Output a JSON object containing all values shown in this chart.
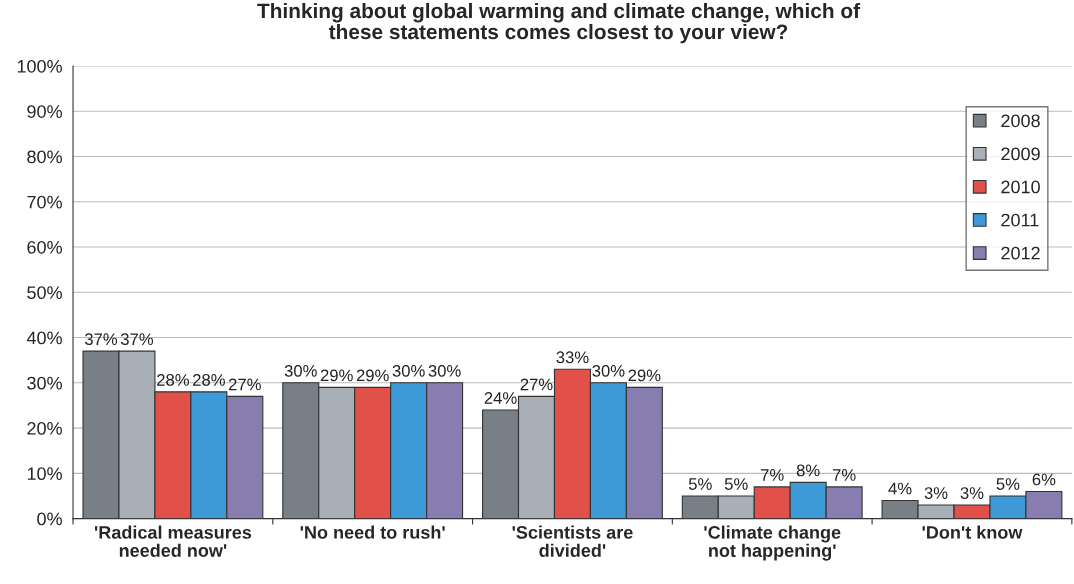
{
  "chart_data": {
    "type": "bar",
    "title": "Thinking about global warming and climate change, which of these statements comes closest to your view?",
    "categories": [
      "'Radical measures needed now'",
      "'No need to rush'",
      "'Scientists are divided'",
      "'Climate change not happening'",
      "'Don't know"
    ],
    "series": [
      {
        "name": "2008",
        "color": "#787f86",
        "values": [
          37,
          30,
          24,
          5,
          4
        ],
        "value_labels": [
          "37%",
          "30%",
          "24%",
          "5%",
          "4%"
        ]
      },
      {
        "name": "2009",
        "color": "#a9afb6",
        "values": [
          37,
          29,
          27,
          5,
          3
        ],
        "value_labels": [
          "37%",
          "29%",
          "27%",
          "5%",
          "3%"
        ]
      },
      {
        "name": "2010",
        "color": "#e2504a",
        "values": [
          28,
          29,
          33,
          7,
          3
        ],
        "value_labels": [
          "28%",
          "29%",
          "33%",
          "7%",
          "3%"
        ]
      },
      {
        "name": "2011",
        "color": "#3d9ad6",
        "values": [
          28,
          30,
          30,
          8,
          5
        ],
        "value_labels": [
          "28%",
          "30%",
          "30%",
          "8%",
          "5%"
        ]
      },
      {
        "name": "2012",
        "color": "#877daf",
        "values": [
          27,
          30,
          29,
          7,
          6
        ],
        "value_labels": [
          "27%",
          "30%",
          "29%",
          "7%",
          "6%"
        ]
      }
    ],
    "ylim": [
      0,
      100
    ],
    "yticks": [
      {
        "value": 0,
        "label": "0%"
      },
      {
        "value": 10,
        "label": "10%"
      },
      {
        "value": 20,
        "label": "20%"
      },
      {
        "value": 30,
        "label": "30%"
      },
      {
        "value": 40,
        "label": "40%"
      },
      {
        "value": 50,
        "label": "50%"
      },
      {
        "value": 60,
        "label": "60%"
      },
      {
        "value": 70,
        "label": "70%"
      },
      {
        "value": 80,
        "label": "80%"
      },
      {
        "value": 90,
        "label": "90%"
      },
      {
        "value": 100,
        "label": "100%"
      }
    ],
    "grid": "y",
    "legend": "top right"
  }
}
